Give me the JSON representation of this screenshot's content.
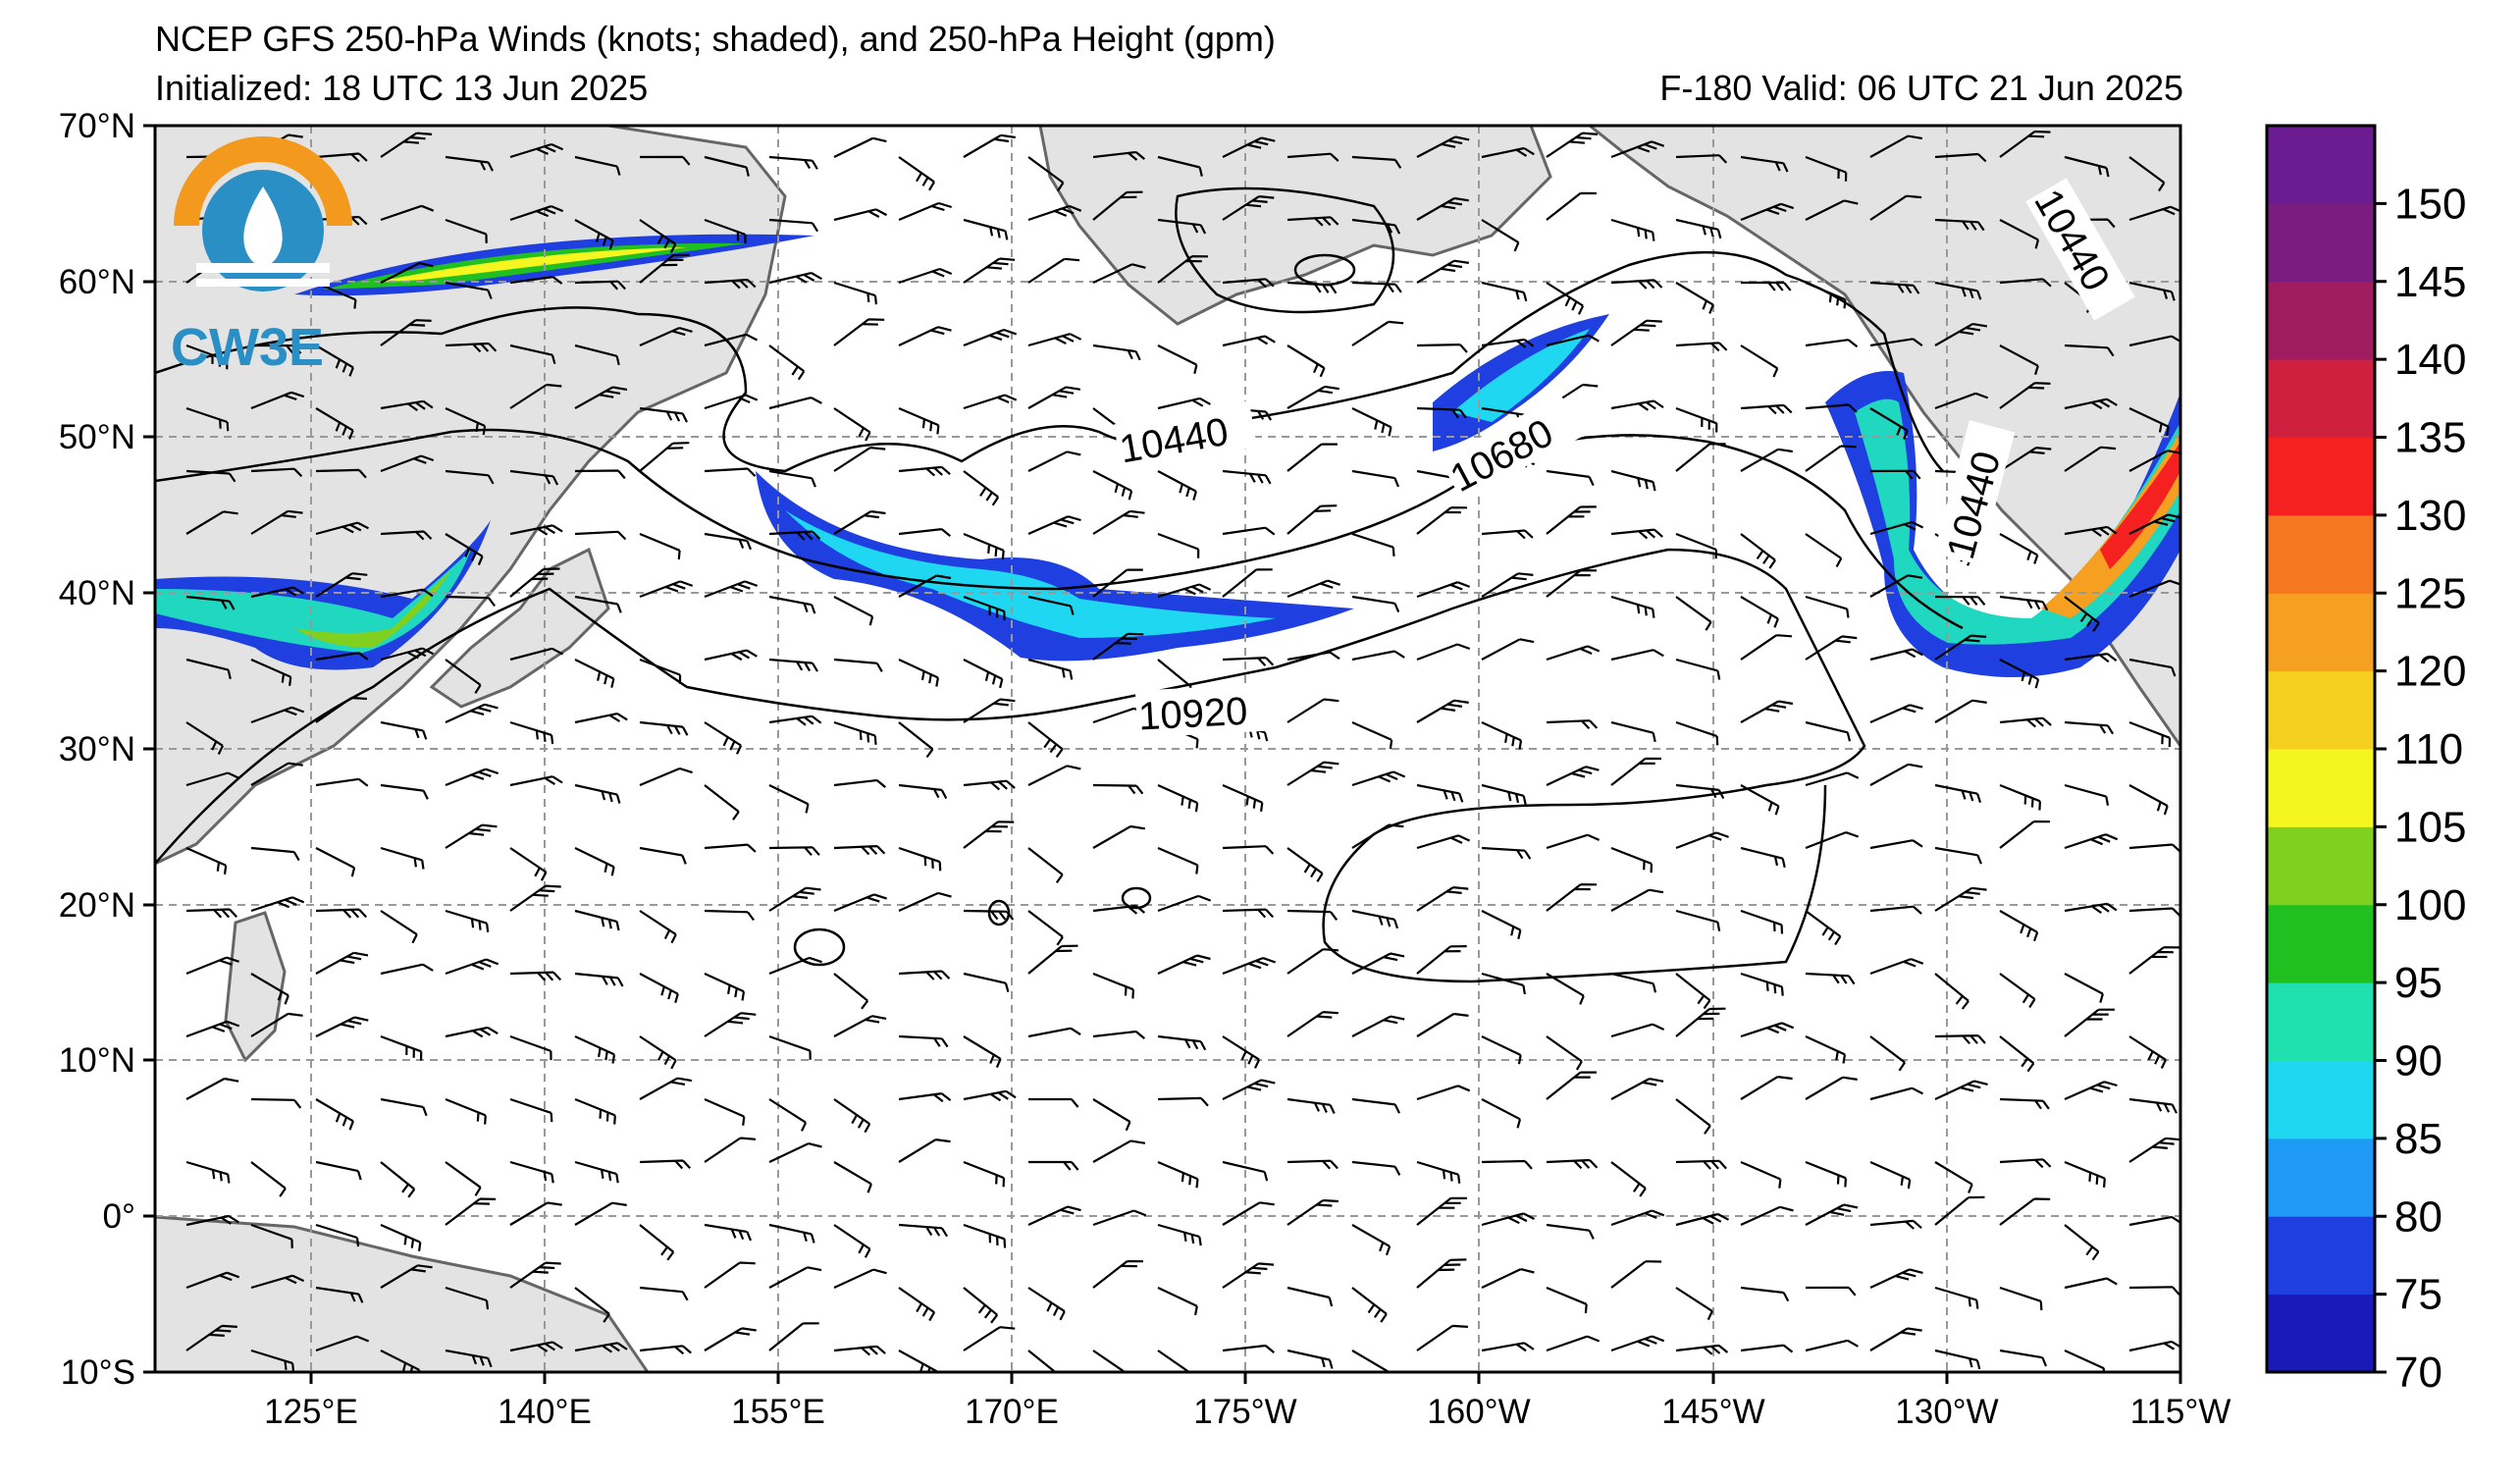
{
  "title": {
    "line1": "NCEP GFS 250-hPa Winds (knots; shaded), and 250-hPa Height (gpm)",
    "line2_left": "Initialized: 18 UTC 13 Jun 2025",
    "line2_right": "F-180  Valid: 06 UTC 21 Jun 2025"
  },
  "logo": {
    "text": "CW3E",
    "icon": "cw3e-logo-icon"
  },
  "map": {
    "lat_labels": [
      "70°N",
      "60°N",
      "50°N",
      "40°N",
      "30°N",
      "20°N",
      "10°N",
      "0°",
      "10°S"
    ],
    "lon_labels": [
      "125°E",
      "140°E",
      "155°E",
      "170°E",
      "175°W",
      "160°W",
      "145°W",
      "130°W",
      "115°W"
    ],
    "lat_range": [
      -10,
      70
    ],
    "lon_range": [
      110,
      245
    ],
    "contour_labels": [
      "10440",
      "10680",
      "10440",
      "10920",
      "10440"
    ]
  },
  "colorbar": {
    "labels": [
      "70",
      "75",
      "80",
      "85",
      "90",
      "95",
      "100",
      "105",
      "110",
      "120",
      "125",
      "130",
      "135",
      "140",
      "145",
      "150"
    ],
    "colors": [
      "#1a1ab8",
      "#1f3fe0",
      "#1f9af5",
      "#1fd7f0",
      "#20e0b0",
      "#20c020",
      "#80d020",
      "#f5f520",
      "#f5d020",
      "#f5a020",
      "#f57820",
      "#f52020",
      "#d02040",
      "#a01c60",
      "#7a1c80",
      "#6a1c90"
    ],
    "range": [
      70,
      155
    ]
  }
}
